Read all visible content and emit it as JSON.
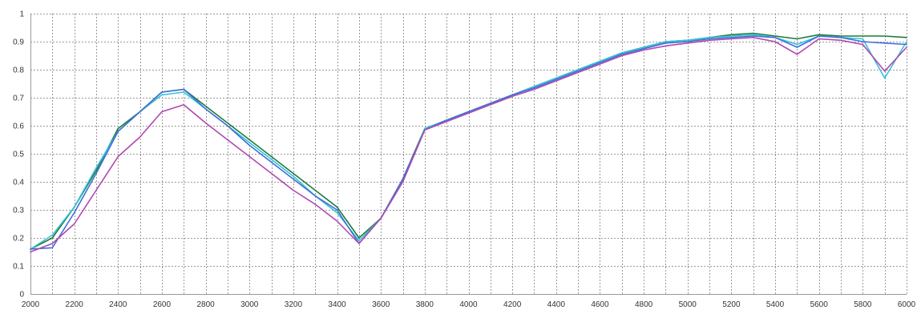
{
  "chart_data": {
    "type": "line",
    "title": "",
    "xlabel": "",
    "ylabel": "",
    "xlim": [
      2000,
      6000
    ],
    "ylim": [
      0,
      1
    ],
    "grid": true,
    "x_ticks": [
      2000,
      2200,
      2400,
      2600,
      2800,
      3000,
      3200,
      3400,
      3600,
      3800,
      4000,
      4200,
      4400,
      4600,
      4800,
      5000,
      5200,
      5400,
      5600,
      5800,
      6000
    ],
    "x_tick_labels": [
      "2000",
      "2200",
      "2400",
      "2600",
      "2800",
      "3000",
      "3200",
      "3400",
      "3600",
      "3800",
      "4000",
      "4200",
      "4400",
      "4600",
      "4800",
      "5000",
      "5200",
      "5400",
      "5600",
      "5800",
      "6000"
    ],
    "y_ticks": [
      0,
      0.1,
      0.2,
      0.3,
      0.4,
      0.5,
      0.6,
      0.7,
      0.8,
      0.9,
      1
    ],
    "y_tick_labels": [
      "0",
      "0.1",
      "0.2",
      "0.3",
      "0.4",
      "0.5",
      "0.6",
      "0.7",
      "0.8",
      "0.9",
      "1"
    ],
    "x": [
      2000,
      2100,
      2200,
      2300,
      2400,
      2500,
      2600,
      2700,
      2800,
      2900,
      3000,
      3100,
      3200,
      3300,
      3400,
      3500,
      3600,
      3700,
      3800,
      3900,
      4000,
      4100,
      4200,
      4300,
      4400,
      4500,
      4600,
      4700,
      4800,
      4900,
      5000,
      5100,
      5200,
      5300,
      5400,
      5500,
      5600,
      5700,
      5800,
      5900,
      6000
    ],
    "series": [
      {
        "color": "#1f7a3a",
        "values": [
          0.16,
          0.2,
          0.31,
          0.44,
          0.59,
          0.65,
          0.72,
          0.73,
          0.67,
          0.61,
          0.55,
          0.49,
          0.43,
          0.37,
          0.31,
          0.2,
          0.27,
          0.41,
          0.59,
          0.62,
          0.65,
          0.68,
          0.71,
          0.74,
          0.77,
          0.8,
          0.83,
          0.86,
          0.88,
          0.9,
          0.905,
          0.915,
          0.925,
          0.93,
          0.92,
          0.91,
          0.925,
          0.92,
          0.92,
          0.92,
          0.915
        ]
      },
      {
        "color": "#33c2dc",
        "values": [
          0.16,
          0.21,
          0.31,
          0.45,
          0.58,
          0.65,
          0.71,
          0.72,
          0.66,
          0.6,
          0.54,
          0.48,
          0.42,
          0.35,
          0.29,
          0.19,
          0.27,
          0.4,
          0.59,
          0.62,
          0.65,
          0.68,
          0.71,
          0.74,
          0.77,
          0.8,
          0.83,
          0.86,
          0.88,
          0.9,
          0.905,
          0.915,
          0.92,
          0.925,
          0.915,
          0.89,
          0.92,
          0.915,
          0.91,
          0.77,
          0.9
        ]
      },
      {
        "color": "#3f6fd8",
        "values": [
          0.16,
          0.165,
          0.29,
          0.43,
          0.58,
          0.65,
          0.72,
          0.73,
          0.66,
          0.6,
          0.53,
          0.47,
          0.41,
          0.35,
          0.3,
          0.18,
          0.27,
          0.41,
          0.585,
          0.62,
          0.65,
          0.68,
          0.71,
          0.735,
          0.765,
          0.795,
          0.825,
          0.855,
          0.875,
          0.895,
          0.9,
          0.91,
          0.915,
          0.92,
          0.915,
          0.88,
          0.92,
          0.915,
          0.9,
          0.895,
          0.89
        ]
      },
      {
        "color": "#b048b0",
        "values": [
          0.15,
          0.18,
          0.25,
          0.37,
          0.49,
          0.56,
          0.65,
          0.675,
          0.61,
          0.55,
          0.49,
          0.43,
          0.37,
          0.32,
          0.26,
          0.18,
          0.27,
          0.4,
          0.585,
          0.615,
          0.645,
          0.675,
          0.705,
          0.73,
          0.76,
          0.79,
          0.82,
          0.85,
          0.87,
          0.885,
          0.895,
          0.905,
          0.91,
          0.915,
          0.9,
          0.855,
          0.91,
          0.905,
          0.89,
          0.795,
          0.88
        ]
      }
    ]
  }
}
